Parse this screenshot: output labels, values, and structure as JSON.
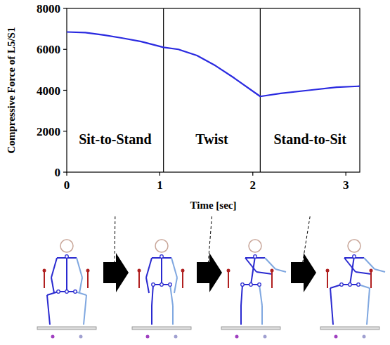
{
  "chart_data": {
    "type": "line",
    "x_label": "Time [sec]",
    "y_label": "Compressive Force of L5/S1",
    "x": [
      0,
      0.2,
      0.4,
      0.6,
      0.8,
      1.04,
      1.2,
      1.4,
      1.6,
      1.8,
      2.08,
      2.3,
      2.6,
      2.9,
      3.15
    ],
    "values": [
      6850,
      6820,
      6700,
      6550,
      6380,
      6100,
      6000,
      5700,
      5200,
      4600,
      3700,
      3850,
      4000,
      4150,
      4200
    ],
    "color": "#2a2ae0",
    "xlim": [
      0,
      3.15
    ],
    "ylim": [
      0,
      8000
    ],
    "xticks": [
      0,
      1,
      2,
      3
    ],
    "yticks": [
      0,
      2000,
      4000,
      6000,
      8000
    ],
    "grid": false,
    "phases": [
      {
        "label": "Sit-to-Stand",
        "start": 0,
        "end": 1.04
      },
      {
        "label": "Twist",
        "start": 1.04,
        "end": 2.08
      },
      {
        "label": "Stand-to-Sit",
        "start": 2.08,
        "end": 3.15
      }
    ]
  }
}
